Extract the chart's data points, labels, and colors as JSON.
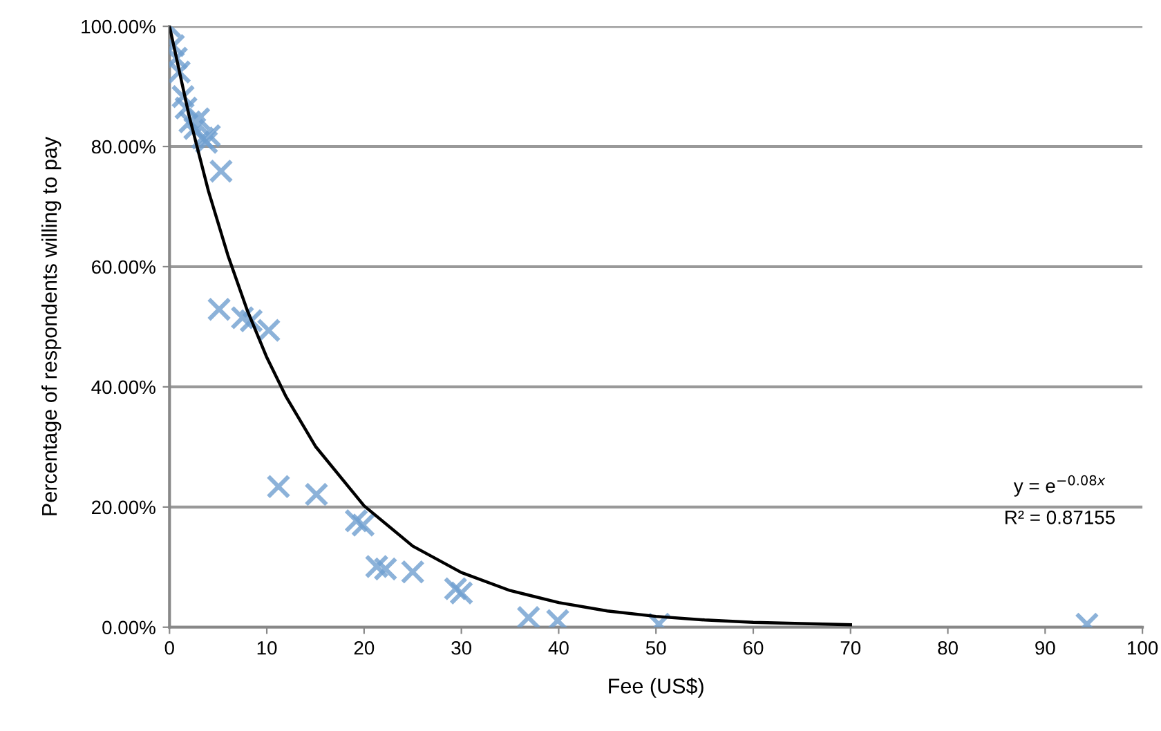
{
  "chart_data": {
    "type": "scatter",
    "xlabel": "Fee (US$)",
    "ylabel": "Percentage of respondents willing to pay",
    "series": [
      {
        "color": "#6f9fcf",
        "marker": "cross",
        "x": [
          0,
          0.4,
          0.7,
          1,
          1.4,
          1.7,
          2.1,
          2.6,
          3,
          3.4,
          3.8,
          4.1,
          5.3,
          5.1,
          7.5,
          8.4,
          10.2,
          11.2,
          15.1,
          19.2,
          19.9,
          21.3,
          22.2,
          25,
          29.4,
          30,
          36.9,
          39.9,
          50.3,
          94.3
        ],
        "values": [
          100,
          96.8,
          94.7,
          92.4,
          88.3,
          86.4,
          84.1,
          83,
          84.6,
          81.4,
          80.7,
          81.8,
          75.9,
          52.9,
          51.5,
          51,
          49.4,
          23.4,
          22.1,
          17.7,
          17,
          10.1,
          9.7,
          9.2,
          6.4,
          5.7,
          1.6,
          1.1,
          0.5,
          0.5
        ]
      },
      {
        "type": "line",
        "color": "#000000",
        "marker": "none",
        "line_style": "solid",
        "x": [
          0,
          2,
          4,
          6,
          8,
          10,
          12,
          15,
          20,
          25,
          30,
          35,
          40,
          45,
          50,
          55,
          60,
          65,
          70
        ],
        "values": [
          100,
          85.2,
          72.6,
          61.9,
          52.7,
          44.9,
          38.3,
          30.1,
          20.2,
          13.5,
          9.1,
          6.1,
          4.1,
          2.7,
          1.8,
          1.2,
          0.8,
          0.6,
          0.4
        ]
      }
    ],
    "annotations": [
      "y = e$^{−0.08x}$",
      "R² = 0.87155"
    ],
    "xlim": [
      0,
      100
    ],
    "xticks": [
      0,
      10,
      20,
      30,
      40,
      50,
      60,
      70,
      80,
      90,
      100
    ],
    "ylim": [
      0,
      100
    ],
    "yticks": [
      {
        "value": 0,
        "label": "0.00%"
      },
      {
        "value": 20,
        "label": "20.00%"
      },
      {
        "value": 40,
        "label": "40.00%"
      },
      {
        "value": 60,
        "label": "60.00%"
      },
      {
        "value": 80,
        "label": "80.00%"
      },
      {
        "value": 100,
        "label": "100.00%"
      }
    ],
    "grid": "y",
    "legend": false
  }
}
